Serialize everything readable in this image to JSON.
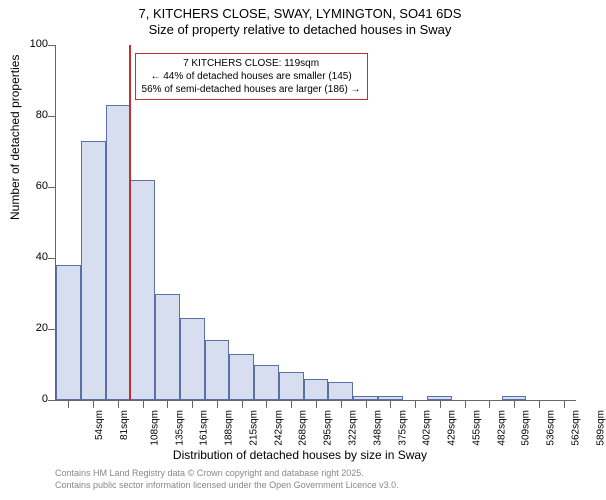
{
  "title_main": "7, KITCHERS CLOSE, SWAY, LYMINGTON, SO41 6DS",
  "title_sub": "Size of property relative to detached houses in Sway",
  "y_axis_title": "Number of detached properties",
  "x_axis_title": "Distribution of detached houses by size in Sway",
  "footer1": "Contains HM Land Registry data © Crown copyright and database right 2025.",
  "footer2": "Contains public sector information licensed under the Open Government Licence v3.0.",
  "annotation": {
    "line1": "7 KITCHERS CLOSE: 119sqm",
    "line2": "← 44% of detached houses are smaller (145)",
    "line3": "56% of semi-detached houses are larger (186) →"
  },
  "chart": {
    "type": "histogram",
    "ylim": [
      0,
      100
    ],
    "ytick_step": 20,
    "x_categories": [
      "54sqm",
      "81sqm",
      "108sqm",
      "135sqm",
      "161sqm",
      "188sqm",
      "215sqm",
      "242sqm",
      "268sqm",
      "295sqm",
      "322sqm",
      "348sqm",
      "375sqm",
      "402sqm",
      "429sqm",
      "455sqm",
      "482sqm",
      "509sqm",
      "536sqm",
      "562sqm",
      "589sqm"
    ],
    "values": [
      38,
      73,
      83,
      62,
      30,
      23,
      17,
      13,
      10,
      8,
      6,
      5,
      1,
      1,
      0,
      1,
      0,
      0,
      1,
      0,
      0
    ],
    "bar_fill": "#d6deef",
    "bar_stroke": "#5b6fa8",
    "background_color": "#ffffff",
    "axis_color": "#666666",
    "vline_position_sqm": 119,
    "vline_color": "#c23030",
    "annotation_border_color": "#c23030",
    "title_fontsize": 13,
    "axis_title_fontsize": 12,
    "tick_fontsize": 11,
    "x_tick_fontsize": 10,
    "footer_fontsize": 9,
    "footer_color": "#888888"
  }
}
